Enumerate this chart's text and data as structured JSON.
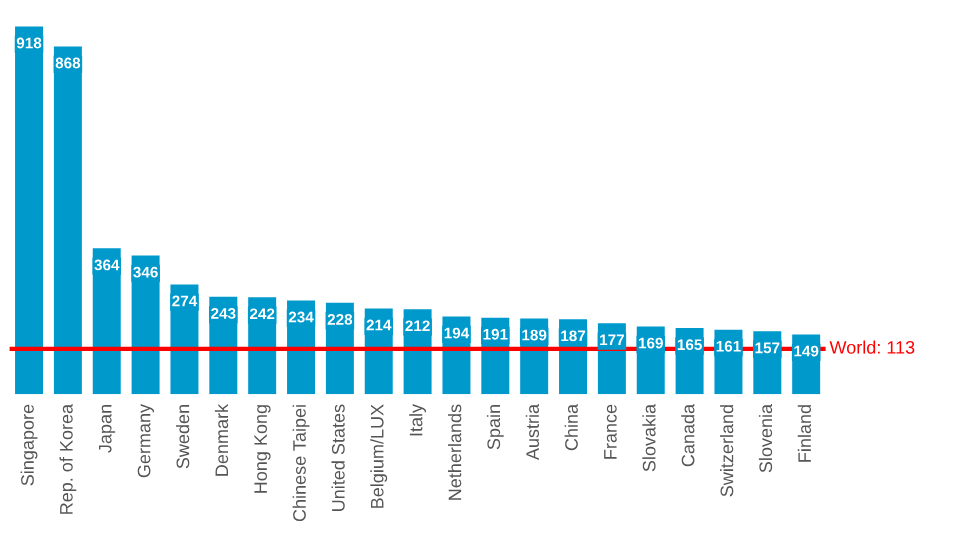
{
  "chart_data": {
    "type": "bar",
    "categories": [
      "Singapore",
      "Rep. of Korea",
      "Japan",
      "Germany",
      "Sweden",
      "Denmark",
      "Hong Kong",
      "Chinese Taipei",
      "United States",
      "Belgium/LUX",
      "Italy",
      "Netherlands",
      "Spain",
      "Austria",
      "China",
      "France",
      "Slovakia",
      "Canada",
      "Switzerland",
      "Slovenia",
      "Finland"
    ],
    "values": [
      918,
      868,
      364,
      346,
      274,
      243,
      242,
      234,
      228,
      214,
      212,
      194,
      191,
      189,
      187,
      177,
      169,
      165,
      161,
      157,
      149
    ],
    "color": "#0099cc",
    "data_labels": true,
    "ylim": [
      0,
      930
    ],
    "ref_lines": [
      {
        "axis": "y",
        "value": 113,
        "label": "World: 113",
        "color": "#ff0000"
      }
    ]
  }
}
